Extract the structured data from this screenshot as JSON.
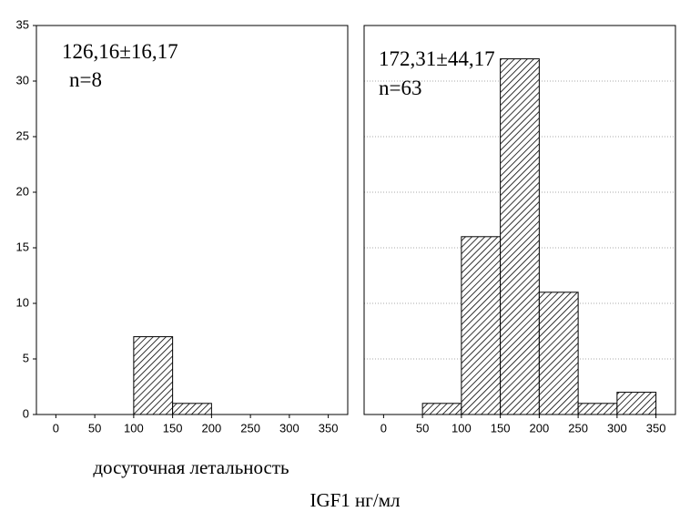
{
  "chart_data": [
    {
      "type": "histogram",
      "bins": [
        100,
        150,
        200
      ],
      "values": [
        7,
        1
      ],
      "xlim": [
        -25,
        375
      ],
      "xticks": [
        0,
        50,
        100,
        150,
        200,
        250,
        300,
        350
      ],
      "ylim": [
        0,
        35
      ],
      "yticks": [
        0,
        5,
        10,
        15,
        20,
        25,
        30,
        35
      ],
      "grid": false,
      "annotations": [
        "126,16±16,17",
        "n=8"
      ],
      "xlabel": "досуточная летальность"
    },
    {
      "type": "histogram",
      "bins": [
        50,
        100,
        150,
        200,
        250,
        300,
        350
      ],
      "values": [
        1,
        16,
        32,
        11,
        1,
        2
      ],
      "xlim": [
        -25,
        375
      ],
      "xticks": [
        0,
        50,
        100,
        150,
        200,
        250,
        300,
        350
      ],
      "ylim": [
        0,
        35
      ],
      "yticks": [
        0,
        5,
        10,
        15,
        20,
        25,
        30,
        35
      ],
      "grid": true,
      "annotations": [
        "172,31±44,17",
        "n=63"
      ]
    }
  ],
  "xlabel": "IGF1 нг/мл"
}
